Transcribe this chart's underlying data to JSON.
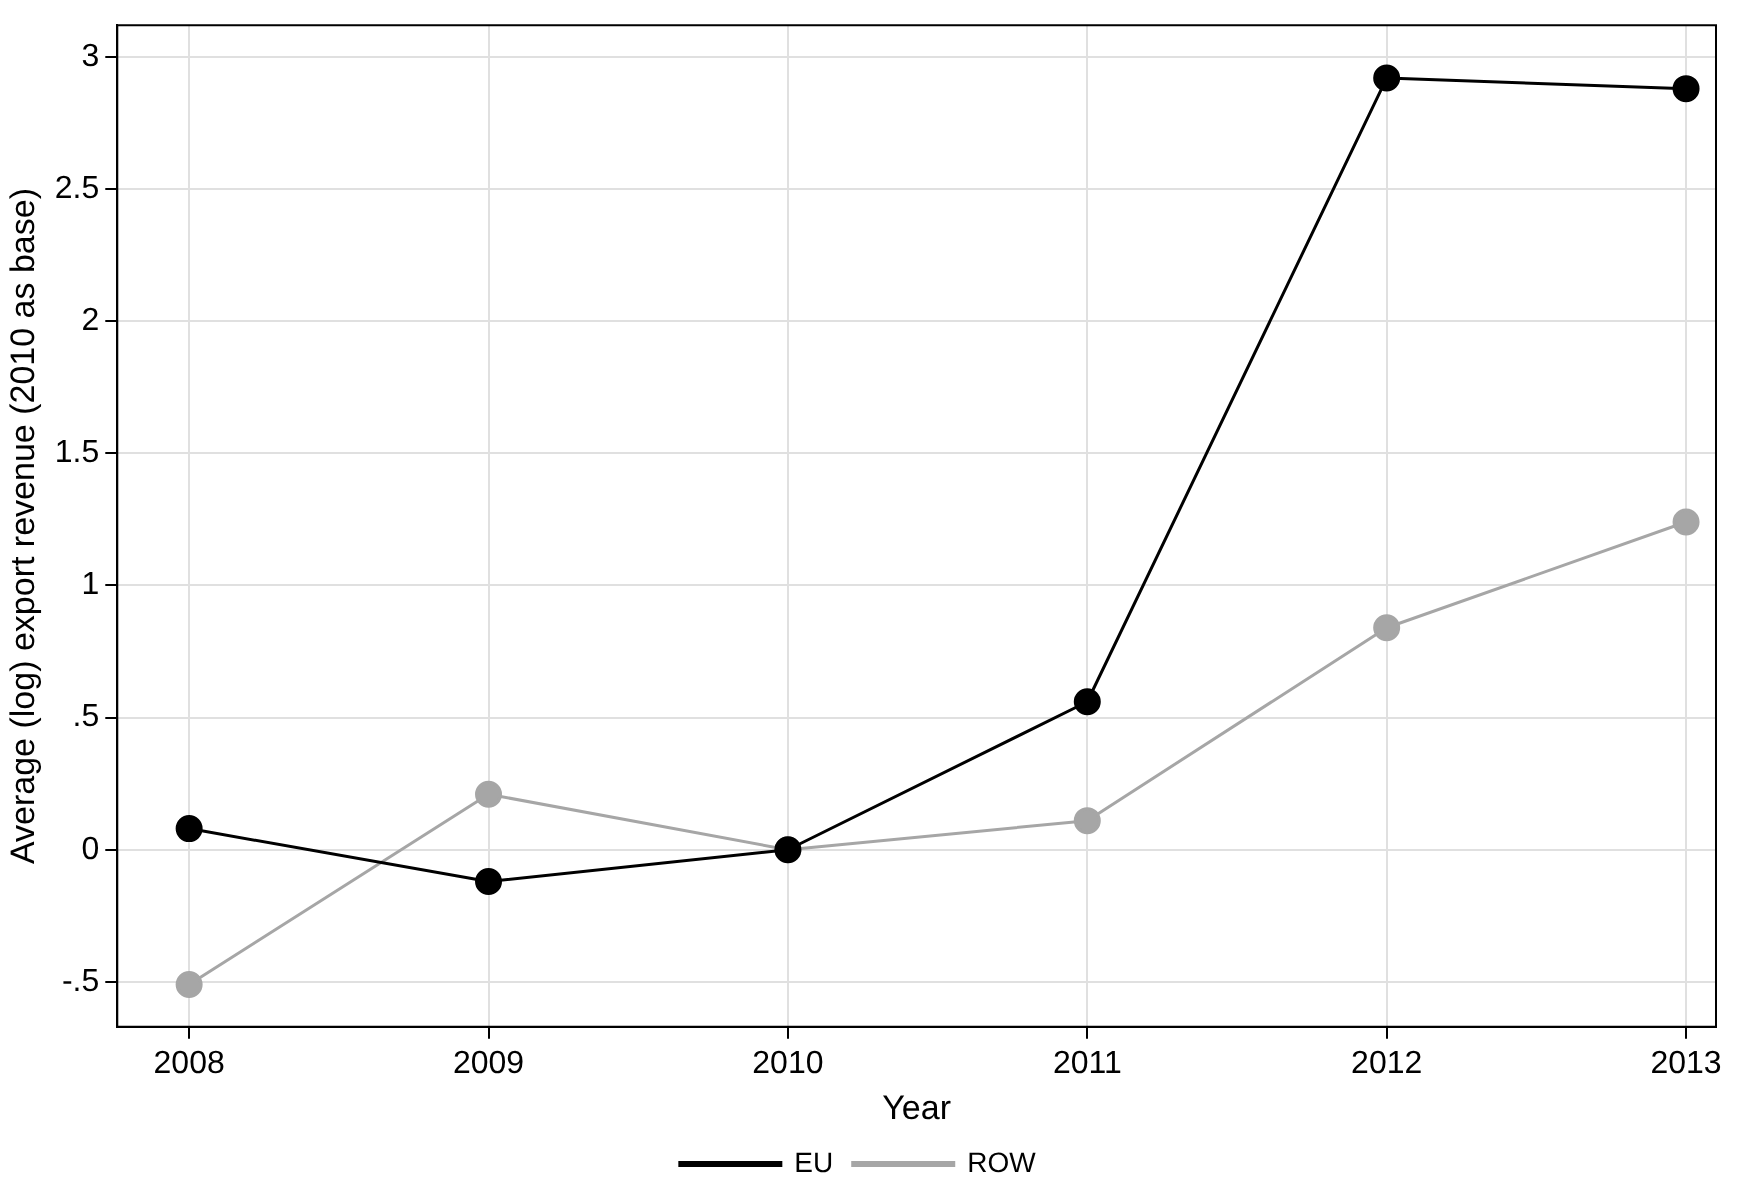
{
  "chart_data": {
    "type": "line",
    "xlabel": "Year",
    "ylabel": "Average (log) export revenue (2010 as base)",
    "x": [
      2008,
      2009,
      2010,
      2011,
      2012,
      2013
    ],
    "series": [
      {
        "name": "EU",
        "color": "#000000",
        "values": [
          0.08,
          -0.12,
          0,
          0.56,
          2.92,
          2.88
        ]
      },
      {
        "name": "ROW",
        "color": "#a6a6a6",
        "values": [
          -0.51,
          0.21,
          0,
          0.11,
          0.84,
          1.24
        ]
      }
    ],
    "xlim": [
      2007.76,
      2013.1
    ],
    "xticks": [
      2008,
      2009,
      2010,
      2011,
      2012,
      2013
    ],
    "ylim": [
      -0.67,
      3.12
    ],
    "yticks": [
      {
        "value": -0.5,
        "label": "-.5"
      },
      0,
      {
        "value": 0.5,
        "label": ".5"
      },
      1,
      1.5,
      2,
      2.5,
      3
    ],
    "grid": true,
    "legend": "bottom",
    "marker": "circle",
    "line_style": "solid"
  }
}
